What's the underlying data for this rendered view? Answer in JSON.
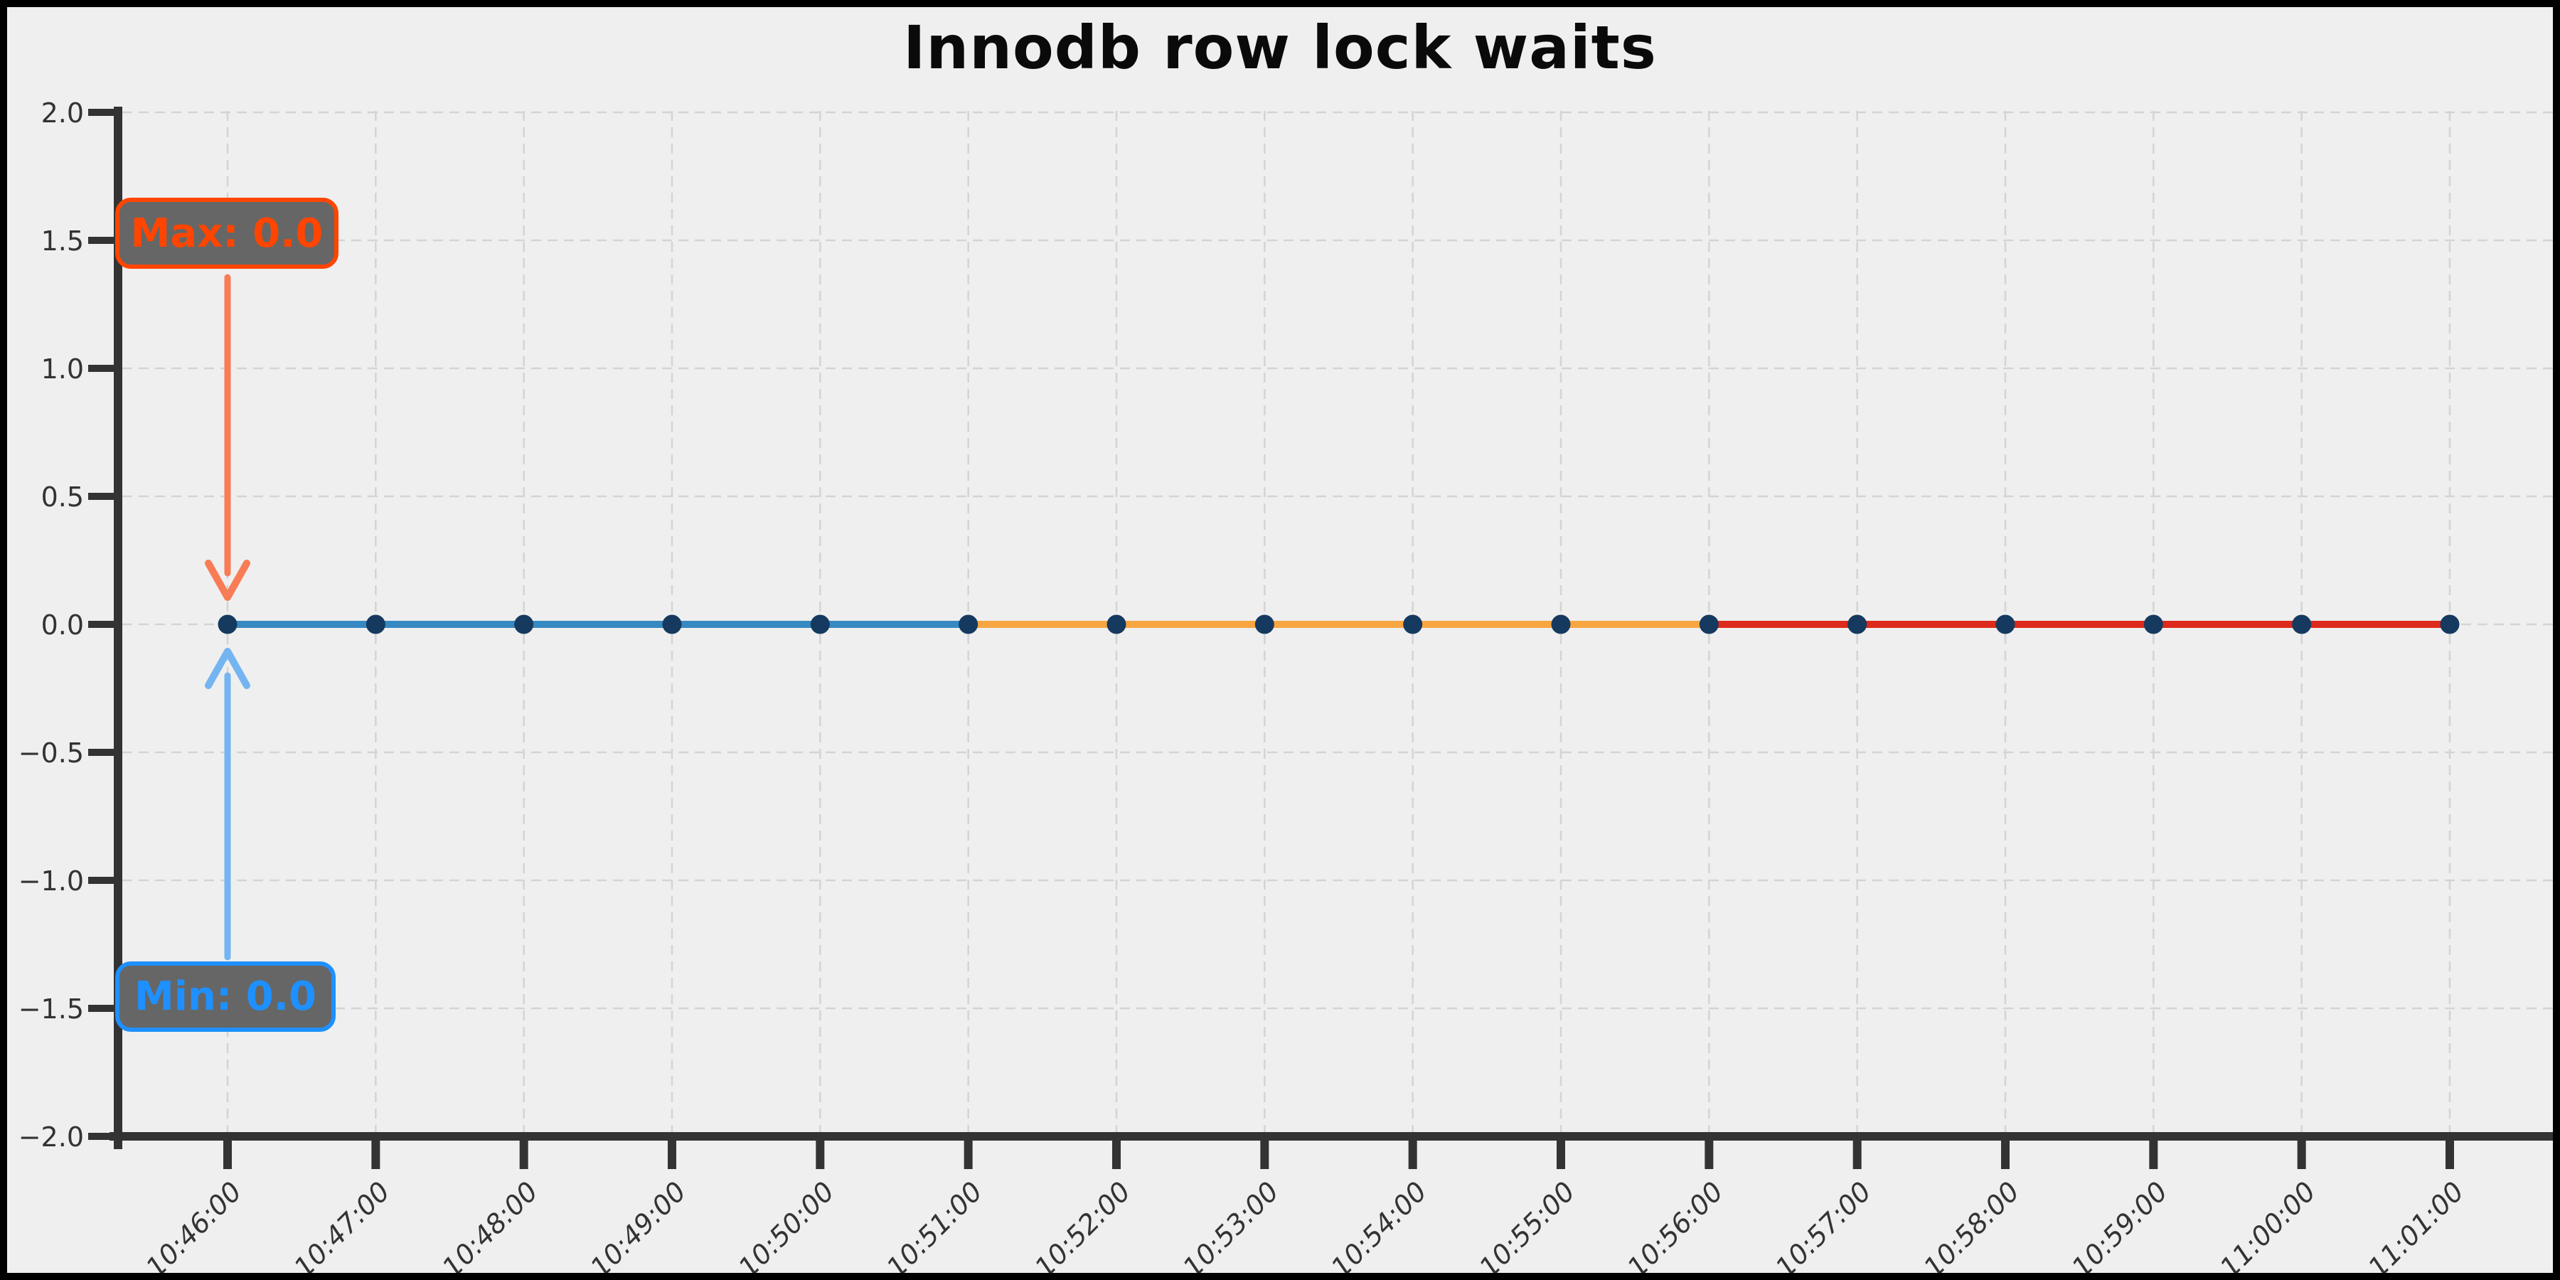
{
  "figure": {
    "background": "#efefef",
    "border_color": "#000000"
  },
  "chart_data": {
    "type": "line",
    "title": "Innodb row lock waits",
    "xlabel": "",
    "ylabel": "",
    "x": [
      "10:46:00",
      "10:47:00",
      "10:48:00",
      "10:49:00",
      "10:50:00",
      "10:51:00",
      "10:52:00",
      "10:53:00",
      "10:54:00",
      "10:55:00",
      "10:56:00",
      "10:57:00",
      "10:58:00",
      "10:59:00",
      "11:00:00",
      "11:01:00"
    ],
    "values": [
      0.0,
      0.0,
      0.0,
      0.0,
      0.0,
      0.0,
      0.0,
      0.0,
      0.0,
      0.0,
      0.0,
      0.0,
      0.0,
      0.0,
      0.0,
      0.0
    ],
    "ylim": [
      -2.0,
      2.0
    ],
    "ytick_values": [
      2.0,
      1.5,
      1.0,
      0.5,
      0.0,
      -0.5,
      -1.0,
      -1.5,
      -2.0
    ],
    "ytick_labels": [
      "2.0",
      "1.5",
      "1.0",
      "0.5",
      "0.0",
      "−0.5",
      "−1.0",
      "−1.5",
      "−2.0"
    ],
    "grid": true,
    "legend": null,
    "axis_color": "#333333",
    "grid_color": "#d4d4d4",
    "marker_color": "#16395f",
    "segments": [
      {
        "name": "segment-blue",
        "color": "#3789c2",
        "from": "10:46:00",
        "to": "10:51:00"
      },
      {
        "name": "segment-orange",
        "color": "#f8a642",
        "from": "10:51:00",
        "to": "10:56:00"
      },
      {
        "name": "segment-red",
        "color": "#dd2a1c",
        "from": "10:56:00",
        "to": "11:01:00"
      }
    ],
    "annotations": [
      {
        "id": "max",
        "label": "Max: 0.0",
        "target_x": "10:46:00",
        "target_y": 0.0,
        "text_color": "#ff4500",
        "border_color": "#ff4500",
        "box_fill": "#666666",
        "arrow_color": "#f87c55",
        "position": "above"
      },
      {
        "id": "min",
        "label": "Min: 0.0",
        "target_x": "10:46:00",
        "target_y": 0.0,
        "text_color": "#1e90ff",
        "border_color": "#1e90ff",
        "box_fill": "#666666",
        "arrow_color": "#74b4f0",
        "position": "below"
      }
    ]
  }
}
